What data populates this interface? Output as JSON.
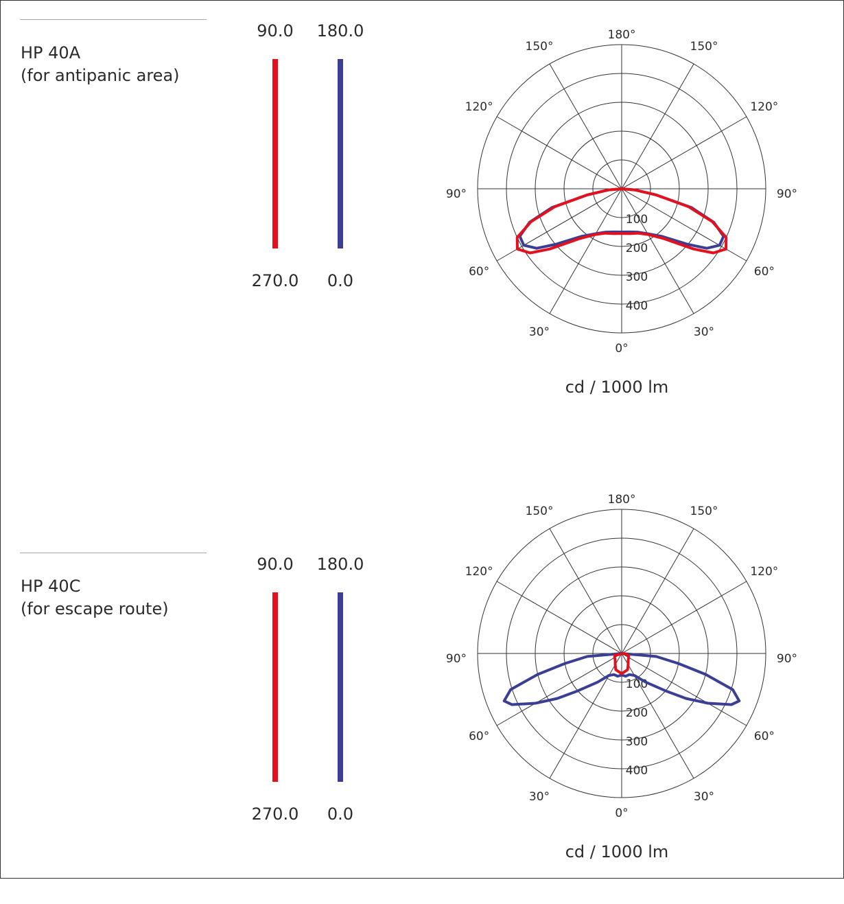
{
  "colors": {
    "c0_270": "#e3101d",
    "c90_180": "#3b3f93",
    "grid": "#333333"
  },
  "luminaires": [
    {
      "name": "HP 40A",
      "subtitle": "(for antipanic area)",
      "legend": [
        {
          "top": "90.0",
          "bottom": "270.0",
          "color": "#e3101d"
        },
        {
          "top": "180.0",
          "bottom": "0.0",
          "color": "#3b3f93"
        }
      ],
      "unit": "cd / 1000 lm",
      "chart_data": {
        "type": "polar",
        "angle_labels": [
          "180°",
          "150°",
          "150°",
          "120°",
          "120°",
          "90°",
          "90°",
          "60°",
          "60°",
          "30°",
          "30°",
          "0°"
        ],
        "radial_ticks": [
          "100",
          "200",
          "300",
          "400"
        ],
        "rmax": 500,
        "series": [
          {
            "line": "90.0 / 180.0",
            "color": "#3b3f93",
            "points": [
              [
                0,
                150
              ],
              [
                10,
                152
              ],
              [
                20,
                160
              ],
              [
                30,
                180
              ],
              [
                40,
                215
              ],
              [
                50,
                300
              ],
              [
                55,
                360
              ],
              [
                60,
                392
              ],
              [
                65,
                390
              ],
              [
                70,
                340
              ],
              [
                75,
                250
              ],
              [
                80,
                120
              ],
              [
                85,
                45
              ],
              [
                90,
                0
              ]
            ]
          },
          {
            "line": "270.0 / 0.0",
            "color": "#e3101d",
            "points": [
              [
                0,
                155
              ],
              [
                10,
                158
              ],
              [
                20,
                164
              ],
              [
                30,
                183
              ],
              [
                40,
                225
              ],
              [
                50,
                325
              ],
              [
                55,
                388
              ],
              [
                60,
                418
              ],
              [
                65,
                400
              ],
              [
                70,
                335
              ],
              [
                75,
                240
              ],
              [
                80,
                120
              ],
              [
                85,
                45
              ],
              [
                90,
                0
              ]
            ]
          }
        ]
      }
    },
    {
      "name": "HP 40C",
      "subtitle": "(for escape route)",
      "legend": [
        {
          "top": "90.0",
          "bottom": "270.0",
          "color": "#e3101d"
        },
        {
          "top": "180.0",
          "bottom": "0.0",
          "color": "#3b3f93"
        }
      ],
      "unit": "cd / 1000 lm",
      "chart_data": {
        "type": "polar",
        "angle_labels": [
          "180°",
          "150°",
          "150°",
          "120°",
          "120°",
          "90°",
          "90°",
          "60°",
          "60°",
          "30°",
          "30°",
          "0°"
        ],
        "radial_ticks": [
          "100",
          "200",
          "300",
          "400"
        ],
        "rmax": 500,
        "series": [
          {
            "line": "90.0 / 180.0",
            "color": "#3b3f93",
            "points": [
              [
                0,
                75
              ],
              [
                10,
                80
              ],
              [
                20,
                78
              ],
              [
                30,
                88
              ],
              [
                40,
                130
              ],
              [
                50,
                205
              ],
              [
                55,
                272
              ],
              [
                60,
                345
              ],
              [
                65,
                420
              ],
              [
                68,
                440
              ],
              [
                72,
                405
              ],
              [
                76,
                300
              ],
              [
                80,
                200
              ],
              [
                85,
                120
              ],
              [
                90,
                0
              ]
            ]
          },
          {
            "line": "270.0 / 0.0",
            "color": "#e3101d",
            "points": [
              [
                0,
                70
              ],
              [
                20,
                60
              ],
              [
                30,
                45
              ],
              [
                45,
                32
              ],
              [
                60,
                28
              ],
              [
                75,
                25
              ],
              [
                90,
                8
              ]
            ]
          }
        ]
      }
    }
  ]
}
